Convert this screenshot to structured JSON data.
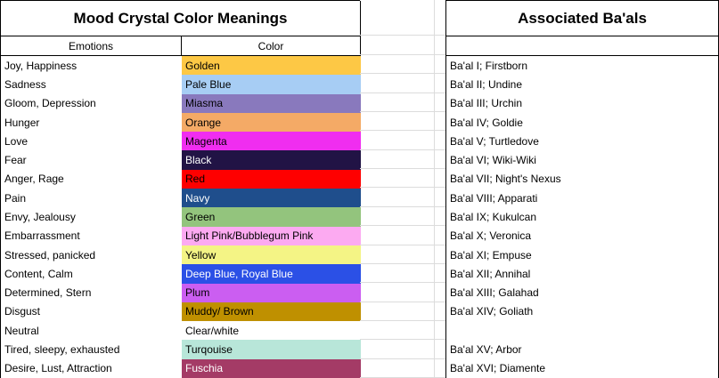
{
  "left_table": {
    "title": "Mood Crystal Color Meanings",
    "emotions_header": "Emotions",
    "color_header": "Color",
    "rows": [
      {
        "emotion": "Joy, Happiness",
        "color_name": "Golden",
        "bg": "#fdc845",
        "text_color": "#000000"
      },
      {
        "emotion": "Sadness",
        "color_name": "Pale Blue",
        "bg": "#a7cdf4",
        "text_color": "#000000"
      },
      {
        "emotion": "Gloom, Depression",
        "color_name": "Miasma",
        "bg": "#8979bd",
        "text_color": "#000000"
      },
      {
        "emotion": "Hunger",
        "color_name": "Orange",
        "bg": "#f4aa66",
        "text_color": "#000000"
      },
      {
        "emotion": "Love",
        "color_name": "Magenta",
        "bg": "#f02df0",
        "text_color": "#000000"
      },
      {
        "emotion": "Fear",
        "color_name": "Black",
        "bg": "#211345",
        "text_color": "#ffffff"
      },
      {
        "emotion": "Anger, Rage",
        "color_name": "Red",
        "bg": "#fe0000",
        "text_color": "#000000"
      },
      {
        "emotion": "Pain",
        "color_name": "Navy",
        "bg": "#1f4e8c",
        "text_color": "#ffffff"
      },
      {
        "emotion": "Envy, Jealousy",
        "color_name": "Green",
        "bg": "#93c47d",
        "text_color": "#000000"
      },
      {
        "emotion": "Embarrassment",
        "color_name": "Light Pink/Bubblegum Pink",
        "bg": "#fcaaf1",
        "text_color": "#000000"
      },
      {
        "emotion": "Stressed, panicked",
        "color_name": "Yellow",
        "bg": "#f4f485",
        "text_color": "#000000"
      },
      {
        "emotion": "Content, Calm",
        "color_name": "Deep Blue, Royal Blue",
        "bg": "#2b50e6",
        "text_color": "#ffffff"
      },
      {
        "emotion": "Determined, Stern",
        "color_name": "Plum",
        "bg": "#cb5ef1",
        "text_color": "#000000"
      },
      {
        "emotion": "Disgust",
        "color_name": "Muddy/ Brown",
        "bg": "#bf9000",
        "text_color": "#000000"
      },
      {
        "emotion": "Neutral",
        "color_name": "Clear/white",
        "bg": "#ffffff",
        "text_color": "#000000"
      },
      {
        "emotion": "Tired, sleepy, exhausted",
        "color_name": "Turqouise",
        "bg": "#b8e6d9",
        "text_color": "#000000"
      },
      {
        "emotion": "Desire, Lust, Attraction",
        "color_name": "Fuschia",
        "bg": "#a43b66",
        "text_color": "#ffffff"
      }
    ]
  },
  "right_table": {
    "title": "Associated Ba'als",
    "rows": [
      {
        "label": "Ba'al I; Firstborn"
      },
      {
        "label": "Ba'al II; Undine"
      },
      {
        "label": "Ba'al III; Urchin"
      },
      {
        "label": "Ba'al IV; Goldie"
      },
      {
        "label": "Ba'al V; Turtledove"
      },
      {
        "label": "Ba'al VI; Wiki-Wiki"
      },
      {
        "label": "Ba'al VII; Night's Nexus"
      },
      {
        "label": "Ba'al VIII; Apparati"
      },
      {
        "label": "Ba'al IX; Kukulcan"
      },
      {
        "label": "Ba'al X; Veronica"
      },
      {
        "label": "Ba'al XI; Empuse"
      },
      {
        "label": "Ba'al XII; Annihal"
      },
      {
        "label": "Ba'al XIII; Galahad"
      },
      {
        "label": "Ba'al XIV; Goliath"
      },
      {
        "label": ""
      },
      {
        "label": "Ba'al XV; Arbor"
      },
      {
        "label": "Ba'al XVI; Diamente"
      }
    ]
  },
  "colors": {
    "table_border": "#000000",
    "gridline": "#dcdcdc"
  }
}
